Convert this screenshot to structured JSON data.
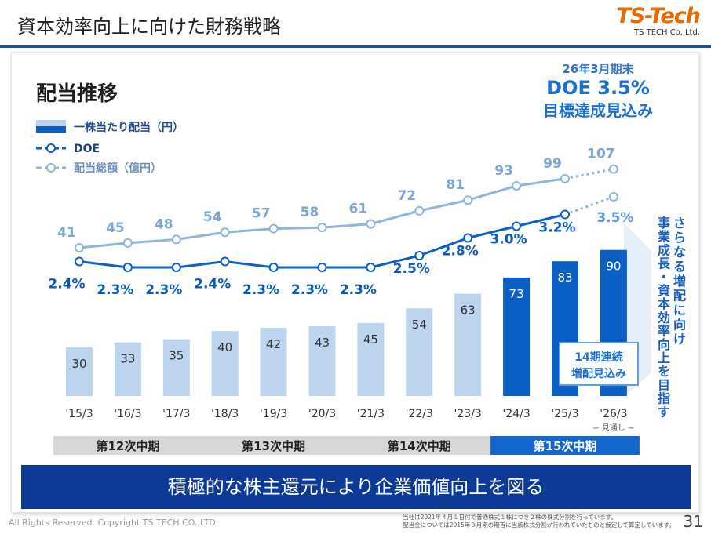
{
  "page": {
    "title": "資本効率向上に向けた財務戦略",
    "logo_main": "TS-Tech",
    "logo_sub": "TS TECH Co.,Ltd.",
    "banner": "積極的な株主還元により企業価値向上を図る",
    "copyright": "All Rights Reserved. Copyright TS TECH CO.,LTD.",
    "notes": [
      "当社は2021年４月１日付で普通株式１株につき２株の株式分割を行っています。",
      "配当金については2015年３月期の期首に当該株式分割が行われていたものと仮定して算定しています。"
    ],
    "page_number": "31"
  },
  "chart_data": {
    "type": "bar+line",
    "title": "配当推移",
    "categories": [
      "'15/3",
      "'16/3",
      "'17/3",
      "'18/3",
      "'19/3",
      "'20/3",
      "'21/3",
      "'22/3",
      "'23/3",
      "'24/3",
      "'25/3",
      "'26/3"
    ],
    "forecast_label": "− 見通し −",
    "legend": [
      {
        "name": "一株当たり配当（円）",
        "type": "bar"
      },
      {
        "name": "DOE",
        "type": "line"
      },
      {
        "name": "配当総額（億円）",
        "type": "line"
      }
    ],
    "series": [
      {
        "name": "一株当たり配当（円）",
        "type": "bar",
        "values": [
          30,
          33,
          35,
          40,
          42,
          43,
          45,
          54,
          63,
          73,
          83,
          90
        ]
      },
      {
        "name": "DOE",
        "type": "line",
        "values": [
          2.4,
          2.3,
          2.3,
          2.4,
          2.3,
          2.3,
          2.3,
          2.5,
          2.8,
          3.0,
          3.2,
          3.5
        ],
        "labels": [
          "2.4%",
          "2.3%",
          "2.3%",
          "2.4%",
          "2.3%",
          "2.3%",
          "2.3%",
          "2.5%",
          "2.8%",
          "3.0%",
          "3.2%",
          "3.5%"
        ]
      },
      {
        "name": "配当総額（億円）",
        "type": "line",
        "values": [
          41,
          45,
          48,
          54,
          57,
          58,
          61,
          72,
          81,
          93,
          99,
          107
        ]
      }
    ],
    "periods": [
      {
        "label": "第12次中期",
        "from": 0,
        "to": 2
      },
      {
        "label": "第13次中期",
        "from": 3,
        "to": 5
      },
      {
        "label": "第14次中期",
        "from": 6,
        "to": 8
      },
      {
        "label": "第15次中期",
        "from": 9,
        "to": 11
      }
    ],
    "target": {
      "line1": "26年3月期末",
      "line2": "DOE 3.5%",
      "line3": "目標達成見込み"
    },
    "badge": {
      "line1": "14期連続",
      "line2": "増配見込み"
    },
    "side_text": [
      "さらなる増配に向け",
      "事業成長・資本効率向上を目指す"
    ],
    "colors": {
      "bar_light": "#bdd4ee",
      "bar_dark": "#0a5fc4",
      "doe": "#0b60c2",
      "total": "#8fb4de",
      "period_gray": "#d7d7d7",
      "period_blue": "#1366cc"
    }
  }
}
